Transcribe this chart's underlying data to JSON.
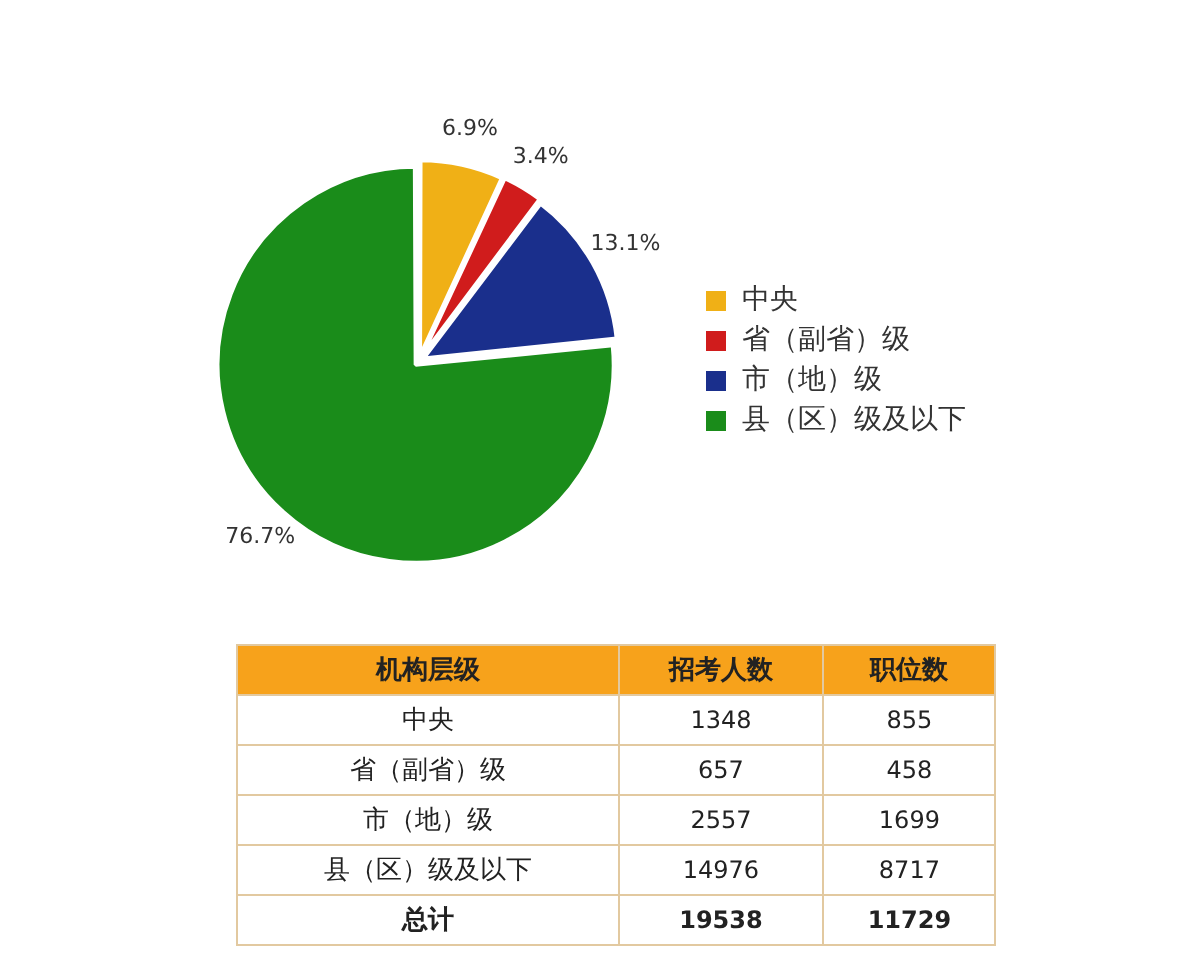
{
  "chart_data": [
    {
      "type": "pie",
      "categories": [
        "中央",
        "省（副省）级",
        "市（地）级",
        "县（区）级及以下"
      ],
      "values": [
        6.9,
        3.4,
        13.1,
        76.7
      ],
      "value_labels": [
        "6.9%",
        "3.4%",
        "13.1%",
        "76.7%"
      ],
      "colors": [
        "#f0b016",
        "#d01c1c",
        "#1a2f8c",
        "#1a8c1a"
      ],
      "legend": "right"
    },
    {
      "type": "other",
      "categories": [
        "中央",
        "省（副省）级",
        "市（地）级",
        "县（区）级及以下"
      ],
      "series": [
        {
          "name": "招考人数",
          "values": [
            1348,
            657,
            2557,
            14976
          ]
        },
        {
          "name": "职位数",
          "values": [
            855,
            458,
            1699,
            8717
          ]
        }
      ],
      "totals": [
        "19538",
        "11729"
      ],
      "annotations": [
        "机构层级",
        "总计"
      ],
      "data_labels": true
    }
  ]
}
